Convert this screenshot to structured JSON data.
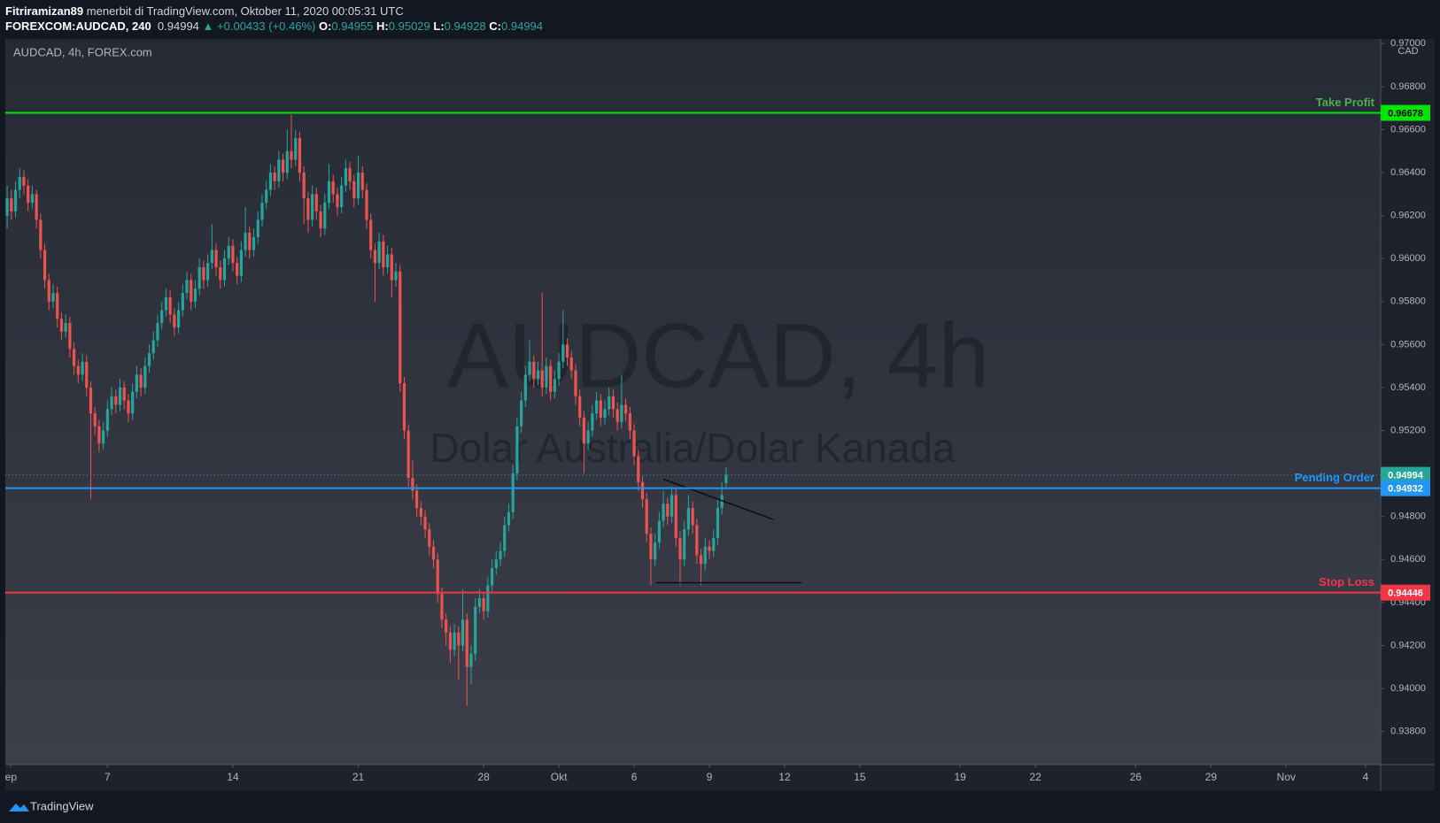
{
  "header": {
    "author": "Fitriramizan89",
    "published": "menerbit di TradingView.com, Oktober 11, 2020 00:05:31 UTC",
    "symbol": "FOREXCOM:AUDCAD, 240",
    "change": "▲ +0.00433 (+0.46%)",
    "ohlc_labels": [
      "O:",
      "H:",
      "L:",
      "C:"
    ]
  },
  "footer": {
    "brand": "TradingView"
  },
  "chart_data": {
    "type": "candlestick",
    "legend": "AUDCAD, 4h, FOREX.com",
    "watermark": "AUDCAD, 4h",
    "watermark_subtitle": "Dolar Australia/Dolar Kanada",
    "currency": "CAD",
    "up_color": "#26a69a",
    "down_color": "#ef5350",
    "ylim": [
      0.93646,
      0.97022
    ],
    "yticks": [
      {
        "value": 0.938,
        "label": "0.93800"
      },
      {
        "value": 0.94,
        "label": "0.94000"
      },
      {
        "value": 0.942,
        "label": "0.94200"
      },
      {
        "value": 0.944,
        "label": "0.94400"
      },
      {
        "value": 0.946,
        "label": "0.94600"
      },
      {
        "value": 0.948,
        "label": "0.94800"
      },
      {
        "value": 0.95,
        "label": "0.95000"
      },
      {
        "value": 0.952,
        "label": "0.95200"
      },
      {
        "value": 0.954,
        "label": "0.95400"
      },
      {
        "value": 0.956,
        "label": "0.95600"
      },
      {
        "value": 0.958,
        "label": "0.95800"
      },
      {
        "value": 0.96,
        "label": "0.96000"
      },
      {
        "value": 0.962,
        "label": "0.96200"
      },
      {
        "value": 0.964,
        "label": "0.96400"
      },
      {
        "value": 0.966,
        "label": "0.96600"
      },
      {
        "value": 0.968,
        "label": "0.96800"
      },
      {
        "value": 0.97,
        "label": "0.97000"
      }
    ],
    "xlim": [
      -0.44,
      328.6
    ],
    "xticks": [
      {
        "value": 0.9,
        "label": "ep"
      },
      {
        "value": 24,
        "label": "7"
      },
      {
        "value": 54,
        "label": "14"
      },
      {
        "value": 84,
        "label": "21"
      },
      {
        "value": 114,
        "label": "28"
      },
      {
        "value": 132,
        "label": "Okt"
      },
      {
        "value": 150,
        "label": "6"
      },
      {
        "value": 168,
        "label": "9"
      },
      {
        "value": 186,
        "label": "12"
      },
      {
        "value": 204,
        "label": "15"
      },
      {
        "value": 228,
        "label": "19"
      },
      {
        "value": 246,
        "label": "22"
      },
      {
        "value": 270,
        "label": "26"
      },
      {
        "value": 288,
        "label": "29"
      },
      {
        "value": 306,
        "label": "Nov"
      },
      {
        "value": 325,
        "label": "4"
      }
    ],
    "levels": [
      {
        "name": "Take Profit",
        "value": 0.96678,
        "color": "#00e600",
        "text_color": "#4caf50"
      },
      {
        "name": "Pending Order",
        "value": 0.94932,
        "color": "#2196f3",
        "text_color": "#2196f3"
      },
      {
        "name": "Stop Loss",
        "value": 0.94446,
        "color": "#f23645",
        "text_color": "#f23645"
      }
    ],
    "drawings": [
      {
        "x": [
          157,
          183.3
        ],
        "y": [
          0.94974,
          0.94786
        ]
      },
      {
        "x": [
          155.3,
          190.1
        ],
        "y": [
          0.94492,
          0.94492
        ]
      }
    ],
    "candles": [
      [
        0.962,
        0.9634,
        0.9614,
        0.9628
      ],
      [
        0.9628,
        0.9632,
        0.9618,
        0.9622
      ],
      [
        0.9622,
        0.9636,
        0.9619,
        0.9632
      ],
      [
        0.9632,
        0.9642,
        0.9628,
        0.9638
      ],
      [
        0.9638,
        0.9641,
        0.963,
        0.9634
      ],
      [
        0.9634,
        0.9637,
        0.9622,
        0.9626
      ],
      [
        0.9626,
        0.9634,
        0.9623,
        0.963
      ],
      [
        0.963,
        0.9632,
        0.9614,
        0.9618
      ],
      [
        0.9618,
        0.9621,
        0.96,
        0.9604
      ],
      [
        0.9604,
        0.9607,
        0.9586,
        0.959
      ],
      [
        0.959,
        0.9593,
        0.9576,
        0.958
      ],
      [
        0.958,
        0.9588,
        0.9577,
        0.9584
      ],
      [
        0.9584,
        0.9587,
        0.9568,
        0.9572
      ],
      [
        0.9572,
        0.9575,
        0.9562,
        0.9566
      ],
      [
        0.9566,
        0.9574,
        0.9563,
        0.957
      ],
      [
        0.957,
        0.9573,
        0.9554,
        0.9558
      ],
      [
        0.9558,
        0.9561,
        0.9546,
        0.955
      ],
      [
        0.955,
        0.9553,
        0.9542,
        0.9546
      ],
      [
        0.9546,
        0.9556,
        0.9543,
        0.9552
      ],
      [
        0.9552,
        0.9555,
        0.9536,
        0.954
      ],
      [
        0.954,
        0.9543,
        0.9488,
        0.9528
      ],
      [
        0.9528,
        0.9531,
        0.9518,
        0.9522
      ],
      [
        0.9522,
        0.9525,
        0.951,
        0.9514
      ],
      [
        0.9514,
        0.9524,
        0.9511,
        0.952
      ],
      [
        0.952,
        0.9534,
        0.9517,
        0.953
      ],
      [
        0.953,
        0.954,
        0.9527,
        0.9536
      ],
      [
        0.9536,
        0.9539,
        0.9528,
        0.9532
      ],
      [
        0.9532,
        0.9544,
        0.9529,
        0.954
      ],
      [
        0.954,
        0.9543,
        0.953,
        0.9534
      ],
      [
        0.9534,
        0.9537,
        0.9524,
        0.9528
      ],
      [
        0.9528,
        0.9542,
        0.9525,
        0.9538
      ],
      [
        0.9538,
        0.955,
        0.9535,
        0.9546
      ],
      [
        0.9546,
        0.9549,
        0.9536,
        0.954
      ],
      [
        0.954,
        0.9554,
        0.9537,
        0.955
      ],
      [
        0.955,
        0.956,
        0.9547,
        0.9556
      ],
      [
        0.9556,
        0.9566,
        0.9553,
        0.9562
      ],
      [
        0.9562,
        0.9574,
        0.9559,
        0.957
      ],
      [
        0.957,
        0.958,
        0.9567,
        0.9576
      ],
      [
        0.9576,
        0.9586,
        0.9573,
        0.9582
      ],
      [
        0.9582,
        0.9585,
        0.957,
        0.9574
      ],
      [
        0.9574,
        0.9577,
        0.9564,
        0.9568
      ],
      [
        0.9568,
        0.958,
        0.9565,
        0.9576
      ],
      [
        0.9576,
        0.9588,
        0.9573,
        0.9584
      ],
      [
        0.9584,
        0.9594,
        0.9581,
        0.959
      ],
      [
        0.959,
        0.9593,
        0.9576,
        0.958
      ],
      [
        0.958,
        0.959,
        0.9577,
        0.9586
      ],
      [
        0.9586,
        0.96,
        0.9583,
        0.9596
      ],
      [
        0.9596,
        0.9599,
        0.9586,
        0.959
      ],
      [
        0.959,
        0.9602,
        0.9587,
        0.9598
      ],
      [
        0.9598,
        0.9616,
        0.9595,
        0.9604
      ],
      [
        0.9604,
        0.9607,
        0.9592,
        0.9596
      ],
      [
        0.9596,
        0.9599,
        0.9586,
        0.959
      ],
      [
        0.959,
        0.9604,
        0.9587,
        0.96
      ],
      [
        0.96,
        0.961,
        0.9597,
        0.9606
      ],
      [
        0.9606,
        0.9609,
        0.9594,
        0.9598
      ],
      [
        0.9598,
        0.9601,
        0.9588,
        0.9592
      ],
      [
        0.9592,
        0.9608,
        0.9589,
        0.9604
      ],
      [
        0.9604,
        0.9624,
        0.9601,
        0.9612
      ],
      [
        0.9612,
        0.9615,
        0.96,
        0.9604
      ],
      [
        0.9604,
        0.9614,
        0.9601,
        0.961
      ],
      [
        0.961,
        0.9622,
        0.9607,
        0.9618
      ],
      [
        0.9618,
        0.963,
        0.9615,
        0.9626
      ],
      [
        0.9626,
        0.9636,
        0.9623,
        0.9632
      ],
      [
        0.9632,
        0.9644,
        0.9629,
        0.964
      ],
      [
        0.964,
        0.9643,
        0.9632,
        0.9636
      ],
      [
        0.9636,
        0.965,
        0.9633,
        0.9646
      ],
      [
        0.9646,
        0.9649,
        0.9636,
        0.964
      ],
      [
        0.964,
        0.966,
        0.9637,
        0.965
      ],
      [
        0.965,
        0.9667,
        0.9642,
        0.9646
      ],
      [
        0.9646,
        0.966,
        0.9643,
        0.9656
      ],
      [
        0.9656,
        0.9659,
        0.9636,
        0.964
      ],
      [
        0.964,
        0.9643,
        0.9616,
        0.9628
      ],
      [
        0.9628,
        0.9631,
        0.9612,
        0.9618
      ],
      [
        0.9618,
        0.9634,
        0.9615,
        0.963
      ],
      [
        0.963,
        0.9633,
        0.9618,
        0.9622
      ],
      [
        0.9622,
        0.9625,
        0.961,
        0.9614
      ],
      [
        0.9614,
        0.963,
        0.9611,
        0.9626
      ],
      [
        0.9626,
        0.9644,
        0.9623,
        0.9636
      ],
      [
        0.9636,
        0.9639,
        0.9626,
        0.963
      ],
      [
        0.963,
        0.9633,
        0.962,
        0.9624
      ],
      [
        0.9624,
        0.9638,
        0.9621,
        0.9634
      ],
      [
        0.9634,
        0.9646,
        0.9631,
        0.9642
      ],
      [
        0.9642,
        0.9645,
        0.9632,
        0.9636
      ],
      [
        0.9636,
        0.9639,
        0.9624,
        0.9628
      ],
      [
        0.9628,
        0.9648,
        0.9625,
        0.964
      ],
      [
        0.964,
        0.9643,
        0.9628,
        0.9632
      ],
      [
        0.9632,
        0.9635,
        0.9614,
        0.9618
      ],
      [
        0.9618,
        0.9621,
        0.96,
        0.9604
      ],
      [
        0.9604,
        0.9607,
        0.958,
        0.9598
      ],
      [
        0.9598,
        0.9612,
        0.9595,
        0.9608
      ],
      [
        0.9608,
        0.9611,
        0.9592,
        0.9596
      ],
      [
        0.9596,
        0.9606,
        0.9593,
        0.9602
      ],
      [
        0.9602,
        0.9605,
        0.9582,
        0.959
      ],
      [
        0.959,
        0.9598,
        0.9587,
        0.9594
      ],
      [
        0.9594,
        0.9597,
        0.9538,
        0.9542
      ],
      [
        0.9542,
        0.9545,
        0.9516,
        0.952
      ],
      [
        0.952,
        0.9523,
        0.9494,
        0.9498
      ],
      [
        0.9498,
        0.9506,
        0.9488,
        0.9492
      ],
      [
        0.9492,
        0.9495,
        0.948,
        0.9484
      ],
      [
        0.9484,
        0.9487,
        0.9476,
        0.948
      ],
      [
        0.948,
        0.9483,
        0.947,
        0.9474
      ],
      [
        0.9474,
        0.9477,
        0.9462,
        0.9466
      ],
      [
        0.9466,
        0.9469,
        0.9456,
        0.946
      ],
      [
        0.946,
        0.9463,
        0.944,
        0.9444
      ],
      [
        0.9444,
        0.9447,
        0.9428,
        0.9432
      ],
      [
        0.9432,
        0.9435,
        0.942,
        0.9426
      ],
      [
        0.9426,
        0.9429,
        0.9412,
        0.9418
      ],
      [
        0.9418,
        0.943,
        0.9415,
        0.9426
      ],
      [
        0.9426,
        0.9429,
        0.9404,
        0.942
      ],
      [
        0.942,
        0.9446,
        0.9417,
        0.9432
      ],
      [
        0.9432,
        0.9435,
        0.9392,
        0.941
      ],
      [
        0.941,
        0.942,
        0.9402,
        0.9416
      ],
      [
        0.9416,
        0.9442,
        0.9413,
        0.9438
      ],
      [
        0.9438,
        0.9446,
        0.9435,
        0.9442
      ],
      [
        0.9442,
        0.9445,
        0.9432,
        0.9436
      ],
      [
        0.9436,
        0.9452,
        0.9433,
        0.9448
      ],
      [
        0.9448,
        0.946,
        0.9445,
        0.9456
      ],
      [
        0.9456,
        0.9464,
        0.9453,
        0.946
      ],
      [
        0.946,
        0.9468,
        0.9457,
        0.9464
      ],
      [
        0.9464,
        0.948,
        0.9461,
        0.9476
      ],
      [
        0.9476,
        0.9486,
        0.9473,
        0.9482
      ],
      [
        0.9482,
        0.9504,
        0.9479,
        0.95
      ],
      [
        0.95,
        0.9526,
        0.9497,
        0.9522
      ],
      [
        0.9522,
        0.9538,
        0.9519,
        0.9534
      ],
      [
        0.9534,
        0.955,
        0.9531,
        0.9546
      ],
      [
        0.9546,
        0.9562,
        0.9543,
        0.9552
      ],
      [
        0.9552,
        0.9555,
        0.954,
        0.9544
      ],
      [
        0.9544,
        0.9552,
        0.9541,
        0.9548
      ],
      [
        0.9548,
        0.9584,
        0.9536,
        0.954
      ],
      [
        0.954,
        0.9554,
        0.9537,
        0.955
      ],
      [
        0.955,
        0.9553,
        0.9534,
        0.9538
      ],
      [
        0.9538,
        0.9548,
        0.9535,
        0.9544
      ],
      [
        0.9544,
        0.9556,
        0.9541,
        0.9552
      ],
      [
        0.9552,
        0.9576,
        0.9549,
        0.956
      ],
      [
        0.956,
        0.9563,
        0.955,
        0.9554
      ],
      [
        0.9554,
        0.9557,
        0.9544,
        0.9548
      ],
      [
        0.9548,
        0.9551,
        0.9532,
        0.9536
      ],
      [
        0.9536,
        0.9539,
        0.9522,
        0.9526
      ],
      [
        0.9526,
        0.9529,
        0.95,
        0.9514
      ],
      [
        0.9514,
        0.9524,
        0.9511,
        0.952
      ],
      [
        0.952,
        0.9532,
        0.9517,
        0.9528
      ],
      [
        0.9528,
        0.9538,
        0.9525,
        0.9534
      ],
      [
        0.9534,
        0.9537,
        0.9522,
        0.9526
      ],
      [
        0.9526,
        0.9534,
        0.9523,
        0.953
      ],
      [
        0.953,
        0.954,
        0.9527,
        0.9536
      ],
      [
        0.9536,
        0.9539,
        0.9526,
        0.953
      ],
      [
        0.953,
        0.9533,
        0.952,
        0.9524
      ],
      [
        0.9524,
        0.9546,
        0.9521,
        0.9532
      ],
      [
        0.9532,
        0.9535,
        0.9524,
        0.9528
      ],
      [
        0.9528,
        0.9531,
        0.9516,
        0.952
      ],
      [
        0.952,
        0.9523,
        0.9504,
        0.9508
      ],
      [
        0.9508,
        0.9511,
        0.9492,
        0.9496
      ],
      [
        0.9496,
        0.9499,
        0.9484,
        0.9488
      ],
      [
        0.9488,
        0.9491,
        0.9468,
        0.9472
      ],
      [
        0.9472,
        0.9475,
        0.9448,
        0.946
      ],
      [
        0.946,
        0.9472,
        0.9457,
        0.9468
      ],
      [
        0.9468,
        0.9482,
        0.9465,
        0.9478
      ],
      [
        0.9478,
        0.9492,
        0.9475,
        0.9486
      ],
      [
        0.9486,
        0.9489,
        0.9476,
        0.948
      ],
      [
        0.948,
        0.9494,
        0.9477,
        0.949
      ],
      [
        0.949,
        0.9493,
        0.9466,
        0.947
      ],
      [
        0.947,
        0.9473,
        0.9448,
        0.946
      ],
      [
        0.946,
        0.9478,
        0.9457,
        0.9474
      ],
      [
        0.9474,
        0.949,
        0.9471,
        0.9484
      ],
      [
        0.9484,
        0.9487,
        0.9472,
        0.9476
      ],
      [
        0.9476,
        0.9479,
        0.9458,
        0.9462
      ],
      [
        0.9462,
        0.9465,
        0.9448,
        0.9458
      ],
      [
        0.9458,
        0.947,
        0.9455,
        0.9466
      ],
      [
        0.9466,
        0.9469,
        0.946,
        0.9464
      ],
      [
        0.9464,
        0.9474,
        0.9461,
        0.947
      ],
      [
        0.947,
        0.9488,
        0.9467,
        0.9484
      ],
      [
        0.9484,
        0.9496,
        0.9481,
        0.949
      ],
      [
        0.94955,
        0.95029,
        0.94928,
        0.94994
      ]
    ]
  }
}
